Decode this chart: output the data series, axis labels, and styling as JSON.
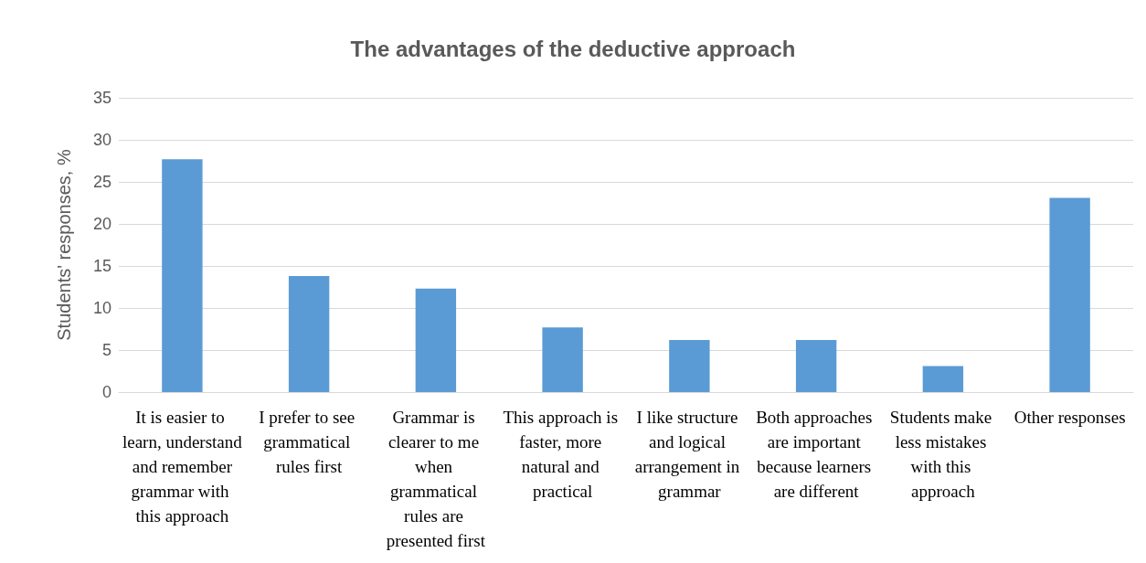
{
  "chart_data": {
    "type": "bar",
    "title": "The advantages of the deductive approach",
    "ylabel": "Students' responses, %",
    "categories": [
      "It is easier to learn, understand and remember grammar with this approach",
      "I prefer to see grammatical rules first",
      "Grammar is clearer to me when grammatical rules are presented first",
      "This approach is faster, more natural and practical",
      "I like structure and logical arrangement in grammar",
      "Both approaches are important because learners are different",
      "Students make less mistakes with this approach",
      "Other responses"
    ],
    "values": [
      27.7,
      13.8,
      12.3,
      7.7,
      6.2,
      6.2,
      3.1,
      23.1
    ],
    "color": "#5b9bd5",
    "ylim": [
      0,
      35
    ],
    "yticks": [
      0,
      5,
      10,
      15,
      20,
      25,
      30,
      35
    ],
    "grid": "y"
  }
}
